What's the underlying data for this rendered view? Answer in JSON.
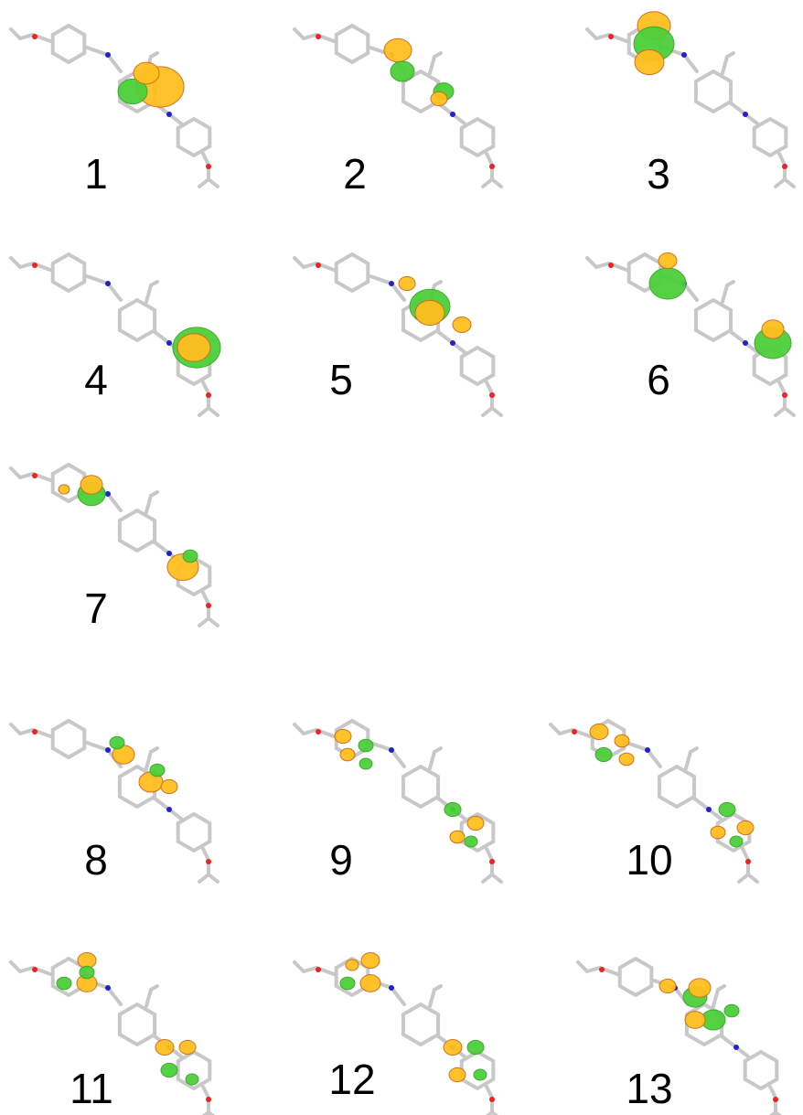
{
  "panels": [
    {
      "label": "1"
    },
    {
      "label": "2"
    },
    {
      "label": "3"
    },
    {
      "label": "4"
    },
    {
      "label": "5"
    },
    {
      "label": "6"
    },
    {
      "label": "7"
    },
    {
      "label": "8"
    },
    {
      "label": "9"
    },
    {
      "label": "10"
    },
    {
      "label": "11"
    },
    {
      "label": "12"
    },
    {
      "label": "13"
    }
  ]
}
